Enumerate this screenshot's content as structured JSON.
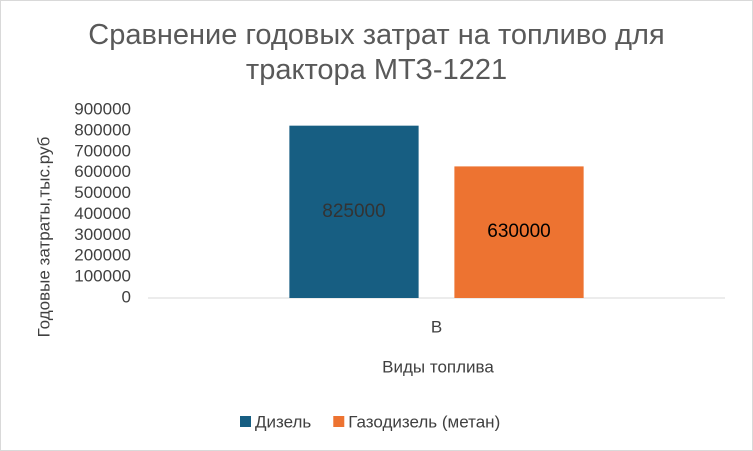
{
  "chart_data": {
    "type": "bar",
    "title": "Сравнение годовых затрат на топливо для трактора МТЗ-1221",
    "x_label": "Виды топлива",
    "y_label": "Годовые затраты,тыс.руб",
    "categories": [
      "В"
    ],
    "series": [
      {
        "name": "Дизель",
        "color": "#175e82",
        "values": [
          825000
        ]
      },
      {
        "name": "Газодизель (метан)",
        "color": "#ed7331",
        "values": [
          630000
        ]
      }
    ],
    "ylim": [
      0,
      900000
    ],
    "yticks": [
      0,
      100000,
      200000,
      300000,
      400000,
      500000,
      600000,
      700000,
      800000,
      900000
    ],
    "grid": false,
    "legend": "bottom"
  }
}
